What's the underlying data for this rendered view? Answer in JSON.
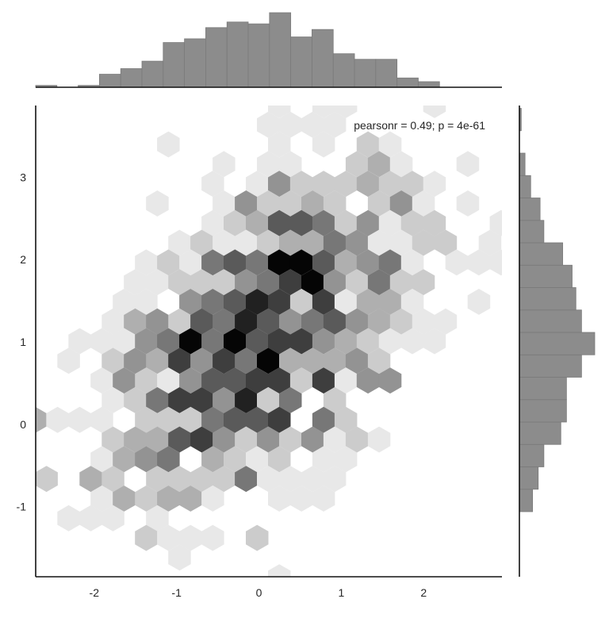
{
  "chart_data": [
    {
      "type": "heatmap",
      "kind": "hexbin",
      "colormap": "grays",
      "xlim": [
        -2.71,
        2.95
      ],
      "ylim": [
        -1.85,
        3.87
      ],
      "x_ticks": [
        "-2",
        "-1",
        "0",
        "1",
        "2"
      ],
      "x_tick_values": [
        -2,
        -1,
        0,
        1,
        2
      ],
      "y_ticks": [
        "-1",
        "0",
        "1",
        "2",
        "3"
      ],
      "y_tick_values": [
        -1,
        0,
        1,
        2,
        3
      ],
      "grid": false,
      "annotation": "pearsonr = 0.49; p = 4e-61",
      "annotation_placement": "top-right",
      "hex_grid": {
        "x_first_even_row": -2.714,
        "x_first_odd_row": -2.579,
        "x_step": 0.2692,
        "y_first_row": 3.875,
        "y_step": -0.2388,
        "density_levels_max": 9,
        "rows": [
          [
            0,
            0,
            0,
            0,
            0,
            0,
            0,
            0,
            0,
            0,
            0,
            1,
            0,
            1,
            1,
            0,
            0,
            0,
            1,
            0,
            0,
            0
          ],
          [
            0,
            0,
            0,
            0,
            0,
            0,
            0,
            0,
            0,
            0,
            1,
            1,
            1,
            1,
            0,
            0,
            0,
            0,
            0,
            0,
            0
          ],
          [
            0,
            0,
            0,
            0,
            0,
            0,
            1,
            0,
            0,
            0,
            0,
            1,
            0,
            1,
            0,
            2,
            1,
            0,
            0,
            0,
            0,
            0
          ],
          [
            0,
            0,
            0,
            0,
            0,
            0,
            0,
            0,
            1,
            0,
            1,
            1,
            0,
            0,
            2,
            3,
            1,
            0,
            0,
            1,
            0
          ],
          [
            0,
            0,
            0,
            0,
            0,
            0,
            0,
            0,
            1,
            0,
            1,
            4,
            2,
            2,
            2,
            3,
            2,
            2,
            1,
            0,
            0,
            0
          ],
          [
            0,
            0,
            0,
            0,
            0,
            1,
            0,
            0,
            1,
            4,
            2,
            2,
            3,
            2,
            0,
            2,
            4,
            1,
            0,
            1,
            0
          ],
          [
            0,
            0,
            0,
            0,
            0,
            0,
            0,
            0,
            1,
            2,
            3,
            6,
            6,
            5,
            2,
            4,
            1,
            2,
            2,
            0,
            0,
            1
          ],
          [
            0,
            0,
            0,
            0,
            0,
            0,
            1,
            2,
            1,
            1,
            2,
            3,
            3,
            5,
            4,
            1,
            1,
            2,
            2,
            0,
            1
          ],
          [
            0,
            0,
            0,
            0,
            0,
            1,
            2,
            1,
            5,
            6,
            5,
            9,
            9,
            6,
            3,
            4,
            5,
            1,
            0,
            1,
            1,
            1
          ],
          [
            0,
            0,
            0,
            0,
            1,
            1,
            2,
            2,
            2,
            4,
            5,
            7,
            9,
            4,
            2,
            5,
            2,
            2,
            0,
            0,
            0
          ],
          [
            0,
            0,
            0,
            0,
            1,
            1,
            0,
            4,
            5,
            6,
            8,
            7,
            2,
            7,
            1,
            3,
            3,
            1,
            0,
            0,
            1,
            0
          ],
          [
            0,
            0,
            0,
            1,
            3,
            4,
            2,
            6,
            5,
            8,
            6,
            4,
            5,
            6,
            4,
            3,
            2,
            1,
            1,
            0,
            0
          ],
          [
            0,
            0,
            1,
            1,
            1,
            4,
            5,
            9,
            5,
            9,
            6,
            7,
            7,
            4,
            3,
            2,
            1,
            1,
            1,
            0,
            0,
            0
          ],
          [
            0,
            1,
            0,
            2,
            4,
            3,
            7,
            4,
            7,
            5,
            9,
            3,
            3,
            3,
            4,
            2,
            0,
            0,
            0,
            0,
            0
          ],
          [
            0,
            0,
            0,
            1,
            4,
            2,
            1,
            4,
            6,
            6,
            7,
            7,
            2,
            7,
            1,
            4,
            4,
            0,
            0,
            0,
            0,
            0
          ],
          [
            0,
            0,
            0,
            1,
            2,
            5,
            7,
            7,
            4,
            8,
            2,
            5,
            0,
            2,
            0,
            0,
            0,
            0,
            0,
            0,
            0
          ],
          [
            3,
            1,
            1,
            1,
            0,
            2,
            2,
            2,
            5,
            6,
            6,
            7,
            0,
            5,
            2,
            0,
            0,
            0,
            0,
            0,
            0,
            0
          ],
          [
            0,
            0,
            0,
            2,
            3,
            3,
            6,
            7,
            4,
            2,
            4,
            2,
            4,
            1,
            2,
            1,
            0,
            0,
            0,
            0,
            0
          ],
          [
            0,
            0,
            0,
            1,
            3,
            4,
            5,
            0,
            3,
            2,
            1,
            2,
            0,
            1,
            1,
            0,
            0,
            0,
            0,
            0,
            0,
            0
          ],
          [
            2,
            0,
            3,
            2,
            0,
            2,
            2,
            2,
            2,
            5,
            1,
            1,
            1,
            1,
            0,
            0,
            0,
            0,
            0,
            0,
            0
          ],
          [
            0,
            0,
            0,
            1,
            3,
            2,
            3,
            3,
            1,
            0,
            0,
            1,
            1,
            1,
            0,
            0,
            0,
            0,
            0,
            0,
            0,
            0
          ],
          [
            0,
            1,
            1,
            1,
            0,
            1,
            0,
            0,
            0,
            0,
            0,
            0,
            0,
            0,
            0,
            0,
            0,
            0,
            0,
            0,
            0
          ],
          [
            0,
            0,
            0,
            0,
            0,
            2,
            1,
            1,
            1,
            0,
            2,
            0,
            0,
            0,
            0,
            0,
            0,
            0,
            0,
            0,
            0,
            0
          ],
          [
            0,
            0,
            0,
            0,
            0,
            0,
            1,
            0,
            0,
            0,
            0,
            0,
            0,
            0,
            0,
            0,
            0,
            0,
            0,
            0,
            0
          ],
          [
            0,
            0,
            0,
            0,
            0,
            0,
            0,
            0,
            0,
            0,
            0,
            1,
            0,
            0,
            0,
            0,
            0,
            0,
            0,
            0,
            0,
            0
          ]
        ]
      }
    },
    {
      "type": "bar",
      "orientation": "vertical",
      "placement": "top-marginal",
      "bin_start": -2.71,
      "bin_width": 0.258,
      "values": [
        1,
        0,
        1,
        7,
        10,
        14,
        24,
        26,
        32,
        35,
        34,
        40,
        27,
        31,
        18,
        15,
        15,
        5,
        3
      ],
      "bar_color": "#8c8c8c"
    },
    {
      "type": "bar",
      "orientation": "horizontal",
      "placement": "right-marginal",
      "bin_start": -1.06,
      "bin_width": 0.272,
      "values": [
        7,
        10,
        13,
        22,
        25,
        25,
        33,
        40,
        33,
        30,
        28,
        23,
        13,
        11,
        6,
        3,
        0,
        1
      ],
      "bar_color": "#8c8c8c"
    }
  ]
}
